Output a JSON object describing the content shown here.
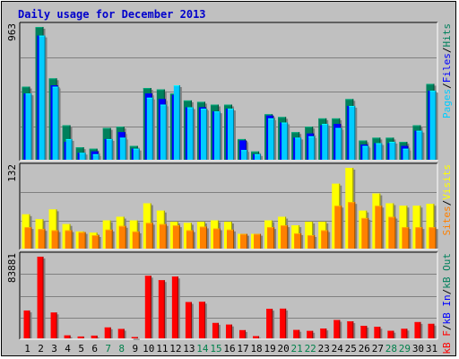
{
  "title": "Daily usage for December 2013",
  "colors": {
    "frame_bg": "#c0c0c0",
    "plot_bg": "#c0c0c0",
    "title": "#0000cc",
    "weekday": "#000000",
    "weekend": "#00804b",
    "hits": "#00805c",
    "files": "#0000ff",
    "pages": "#00ccff",
    "visits": "#ffff00",
    "sites": "#ff8000",
    "kbytes": "#ff0000",
    "slash": "#000000"
  },
  "legends": {
    "top": [
      {
        "text": "Pages",
        "color": "#00ccff"
      },
      {
        "text": "/",
        "color": "#000000"
      },
      {
        "text": "Files",
        "color": "#0000ff"
      },
      {
        "text": "/",
        "color": "#000000"
      },
      {
        "text": "Hits",
        "color": "#00805c"
      }
    ],
    "middle": [
      {
        "text": "Sites",
        "color": "#ff8000"
      },
      {
        "text": "/",
        "color": "#000000"
      },
      {
        "text": "Visits",
        "color": "#ffff00"
      }
    ],
    "bottom": [
      {
        "text": "kB F",
        "color": "#ff0000"
      },
      {
        "text": "/",
        "color": "#000000"
      },
      {
        "text": "kB In",
        "color": "#0000ff"
      },
      {
        "text": "/",
        "color": "#000000"
      },
      {
        "text": "kB Out",
        "color": "#00805c"
      }
    ]
  },
  "chart_data": [
    {
      "type": "bar",
      "panel": "hits-files-pages",
      "ymax_label": "963",
      "ylim": [
        0,
        963
      ],
      "grid": true,
      "categories": [
        "1",
        "2",
        "3",
        "4",
        "5",
        "6",
        "7",
        "8",
        "9",
        "10",
        "11",
        "12",
        "13",
        "14",
        "15",
        "16",
        "17",
        "18",
        "19",
        "20",
        "21",
        "22",
        "23",
        "24",
        "25",
        "26",
        "27",
        "28",
        "29",
        "30",
        "31"
      ],
      "weekend": [
        false,
        false,
        false,
        false,
        false,
        false,
        true,
        true,
        false,
        false,
        false,
        false,
        false,
        true,
        true,
        false,
        false,
        false,
        false,
        false,
        true,
        true,
        false,
        false,
        false,
        false,
        false,
        true,
        true,
        false,
        false
      ],
      "series": [
        {
          "name": "Hits",
          "values": [
            530,
            963,
            590,
            250,
            90,
            80,
            230,
            240,
            100,
            520,
            510,
            480,
            430,
            420,
            400,
            400,
            150,
            60,
            330,
            310,
            200,
            240,
            300,
            300,
            440,
            140,
            160,
            160,
            130,
            250,
            550
          ]
        },
        {
          "name": "Files",
          "values": [
            480,
            900,
            540,
            130,
            50,
            60,
            150,
            200,
            80,
            480,
            440,
            470,
            380,
            380,
            350,
            370,
            140,
            40,
            320,
            270,
            160,
            190,
            250,
            260,
            390,
            110,
            120,
            120,
            100,
            210,
            500
          ]
        },
        {
          "name": "Pages",
          "values": [
            480,
            900,
            530,
            150,
            50,
            40,
            150,
            160,
            80,
            450,
            400,
            540,
            380,
            370,
            350,
            370,
            70,
            40,
            300,
            270,
            160,
            170,
            260,
            230,
            390,
            100,
            120,
            130,
            80,
            210,
            500
          ]
        }
      ]
    },
    {
      "type": "bar",
      "panel": "visits-sites",
      "ymax_label": "132",
      "ylim": [
        0,
        132
      ],
      "grid": true,
      "categories": [
        "1",
        "2",
        "3",
        "4",
        "5",
        "6",
        "7",
        "8",
        "9",
        "10",
        "11",
        "12",
        "13",
        "14",
        "15",
        "16",
        "17",
        "18",
        "19",
        "20",
        "21",
        "22",
        "23",
        "24",
        "25",
        "26",
        "27",
        "28",
        "29",
        "30",
        "31"
      ],
      "series": [
        {
          "name": "Visits",
          "values": [
            56,
            48,
            64,
            40,
            28,
            26,
            46,
            52,
            46,
            74,
            62,
            44,
            42,
            44,
            46,
            44,
            24,
            24,
            46,
            52,
            38,
            44,
            44,
            106,
            132,
            62,
            90,
            74,
            70,
            70,
            73
          ]
        },
        {
          "name": "Sites",
          "values": [
            35,
            32,
            30,
            30,
            27,
            22,
            31,
            37,
            28,
            42,
            40,
            38,
            30,
            36,
            33,
            31,
            24,
            24,
            35,
            38,
            25,
            22,
            30,
            70,
            76,
            50,
            70,
            52,
            35,
            35,
            35
          ]
        }
      ]
    },
    {
      "type": "bar",
      "panel": "kbytes",
      "ymax_label": "83881",
      "ylim": [
        0,
        83881
      ],
      "grid": true,
      "categories": [
        "1",
        "2",
        "3",
        "4",
        "5",
        "6",
        "7",
        "8",
        "9",
        "10",
        "11",
        "12",
        "13",
        "14",
        "15",
        "16",
        "17",
        "18",
        "19",
        "20",
        "21",
        "22",
        "23",
        "24",
        "25",
        "26",
        "27",
        "28",
        "29",
        "30",
        "31"
      ],
      "series": [
        {
          "name": "kB F",
          "values": [
            28600,
            83881,
            26500,
            3000,
            1900,
            2800,
            11200,
            9700,
            1300,
            64200,
            59700,
            63400,
            37300,
            37500,
            15800,
            14100,
            8400,
            2300,
            30300,
            30500,
            8600,
            7600,
            10000,
            18900,
            17500,
            12900,
            11800,
            7700,
            9800,
            16700,
            14900
          ]
        }
      ]
    }
  ]
}
